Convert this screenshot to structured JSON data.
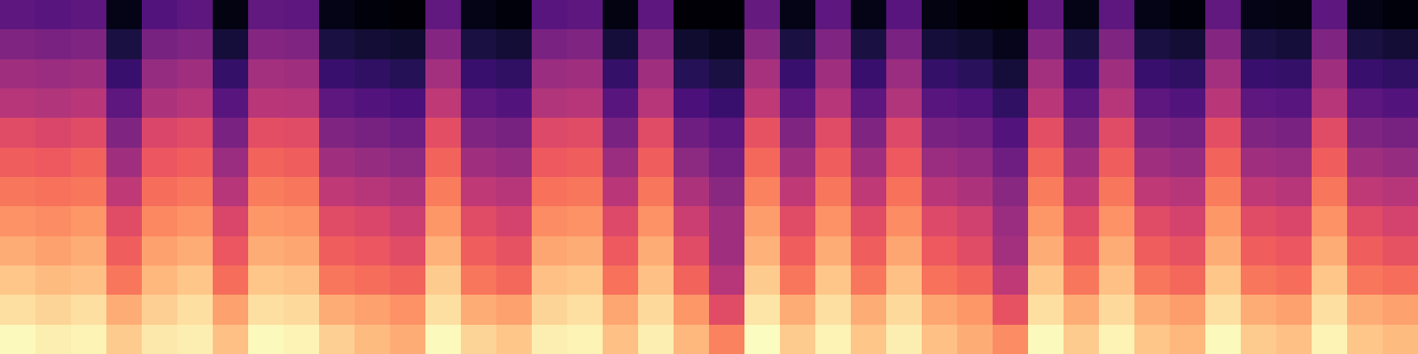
{
  "chart_data": {
    "type": "heatmap",
    "color": "magma",
    "tick_labels": false,
    "grid": false,
    "cells": [
      [
        0.95,
        0.93,
        0.94,
        0.86,
        0.92,
        0.93,
        0.84,
        0.95,
        0.94,
        0.87,
        0.83,
        0.8,
        0.95,
        0.88,
        0.85,
        0.93,
        0.94,
        0.84,
        0.93,
        0.82,
        0.72,
        0.96,
        0.86,
        0.94,
        0.85,
        0.93,
        0.84,
        0.8,
        0.74,
        0.95,
        0.86,
        0.94,
        0.85,
        0.82,
        0.95,
        0.86,
        0.84,
        0.94,
        0.85,
        0.83
      ],
      [
        0.9,
        0.88,
        0.9,
        0.8,
        0.87,
        0.9,
        0.78,
        0.9,
        0.89,
        0.8,
        0.78,
        0.75,
        0.9,
        0.8,
        0.78,
        0.88,
        0.9,
        0.79,
        0.89,
        0.76,
        0.6,
        0.91,
        0.8,
        0.9,
        0.8,
        0.89,
        0.79,
        0.76,
        0.62,
        0.9,
        0.8,
        0.89,
        0.8,
        0.77,
        0.9,
        0.8,
        0.78,
        0.9,
        0.8,
        0.78
      ],
      [
        0.85,
        0.83,
        0.84,
        0.7,
        0.82,
        0.85,
        0.68,
        0.85,
        0.84,
        0.7,
        0.68,
        0.66,
        0.86,
        0.7,
        0.67,
        0.84,
        0.85,
        0.69,
        0.84,
        0.66,
        0.5,
        0.86,
        0.7,
        0.85,
        0.7,
        0.84,
        0.69,
        0.66,
        0.52,
        0.85,
        0.7,
        0.84,
        0.7,
        0.67,
        0.85,
        0.7,
        0.68,
        0.85,
        0.7,
        0.68
      ],
      [
        0.8,
        0.78,
        0.8,
        0.65,
        0.78,
        0.8,
        0.63,
        0.8,
        0.79,
        0.65,
        0.63,
        0.6,
        0.81,
        0.65,
        0.62,
        0.79,
        0.8,
        0.64,
        0.8,
        0.6,
        0.45,
        0.81,
        0.65,
        0.8,
        0.65,
        0.79,
        0.64,
        0.6,
        0.46,
        0.8,
        0.65,
        0.8,
        0.65,
        0.62,
        0.8,
        0.65,
        0.63,
        0.8,
        0.65,
        0.62
      ],
      [
        0.75,
        0.74,
        0.76,
        0.6,
        0.73,
        0.75,
        0.58,
        0.76,
        0.75,
        0.6,
        0.58,
        0.55,
        0.76,
        0.6,
        0.57,
        0.74,
        0.75,
        0.59,
        0.75,
        0.55,
        0.45,
        0.77,
        0.6,
        0.75,
        0.6,
        0.74,
        0.59,
        0.56,
        0.44,
        0.76,
        0.6,
        0.75,
        0.6,
        0.57,
        0.76,
        0.6,
        0.58,
        0.75,
        0.6,
        0.57
      ],
      [
        0.7,
        0.69,
        0.7,
        0.52,
        0.68,
        0.7,
        0.5,
        0.71,
        0.7,
        0.52,
        0.5,
        0.48,
        0.71,
        0.52,
        0.5,
        0.69,
        0.7,
        0.51,
        0.7,
        0.48,
        0.4,
        0.72,
        0.52,
        0.7,
        0.52,
        0.69,
        0.51,
        0.48,
        0.4,
        0.71,
        0.52,
        0.7,
        0.52,
        0.5,
        0.71,
        0.52,
        0.5,
        0.7,
        0.52,
        0.5
      ],
      [
        0.65,
        0.64,
        0.66,
        0.45,
        0.63,
        0.65,
        0.44,
        0.66,
        0.65,
        0.45,
        0.43,
        0.41,
        0.66,
        0.45,
        0.43,
        0.64,
        0.65,
        0.44,
        0.65,
        0.41,
        0.35,
        0.67,
        0.45,
        0.65,
        0.45,
        0.64,
        0.44,
        0.42,
        0.34,
        0.66,
        0.45,
        0.65,
        0.45,
        0.43,
        0.66,
        0.45,
        0.44,
        0.65,
        0.45,
        0.43
      ],
      [
        0.6,
        0.58,
        0.6,
        0.38,
        0.58,
        0.6,
        0.37,
        0.61,
        0.6,
        0.38,
        0.36,
        0.34,
        0.61,
        0.38,
        0.36,
        0.59,
        0.6,
        0.37,
        0.6,
        0.34,
        0.3,
        0.62,
        0.38,
        0.6,
        0.38,
        0.59,
        0.37,
        0.35,
        0.28,
        0.61,
        0.38,
        0.6,
        0.38,
        0.36,
        0.61,
        0.38,
        0.37,
        0.6,
        0.38,
        0.36
      ],
      [
        0.5,
        0.49,
        0.51,
        0.3,
        0.48,
        0.5,
        0.29,
        0.51,
        0.5,
        0.3,
        0.28,
        0.26,
        0.52,
        0.3,
        0.28,
        0.49,
        0.5,
        0.29,
        0.5,
        0.26,
        0.22,
        0.52,
        0.3,
        0.5,
        0.3,
        0.49,
        0.29,
        0.27,
        0.2,
        0.51,
        0.3,
        0.5,
        0.3,
        0.28,
        0.51,
        0.3,
        0.29,
        0.5,
        0.3,
        0.28
      ],
      [
        0.45,
        0.44,
        0.45,
        0.22,
        0.43,
        0.45,
        0.21,
        0.46,
        0.45,
        0.22,
        0.2,
        0.18,
        0.46,
        0.22,
        0.2,
        0.44,
        0.45,
        0.21,
        0.45,
        0.18,
        0.15,
        0.47,
        0.22,
        0.45,
        0.22,
        0.44,
        0.21,
        0.19,
        0.14,
        0.46,
        0.22,
        0.45,
        0.22,
        0.2,
        0.46,
        0.22,
        0.21,
        0.45,
        0.22,
        0.2
      ],
      [
        0.38,
        0.37,
        0.38,
        0.15,
        0.36,
        0.38,
        0.14,
        0.39,
        0.38,
        0.15,
        0.13,
        0.12,
        0.39,
        0.15,
        0.13,
        0.37,
        0.38,
        0.14,
        0.38,
        0.12,
        0.1,
        0.4,
        0.15,
        0.38,
        0.15,
        0.37,
        0.14,
        0.12,
        0.09,
        0.39,
        0.15,
        0.38,
        0.15,
        0.13,
        0.39,
        0.15,
        0.14,
        0.38,
        0.15,
        0.13
      ],
      [
        0.3,
        0.29,
        0.3,
        0.08,
        0.28,
        0.3,
        0.07,
        0.31,
        0.3,
        0.08,
        0.06,
        0.05,
        0.31,
        0.08,
        0.06,
        0.29,
        0.3,
        0.07,
        0.3,
        0.05,
        0.05,
        0.32,
        0.08,
        0.3,
        0.08,
        0.29,
        0.07,
        0.05,
        0.04,
        0.31,
        0.08,
        0.3,
        0.08,
        0.06,
        0.31,
        0.08,
        0.07,
        0.3,
        0.08,
        0.06
      ]
    ]
  }
}
